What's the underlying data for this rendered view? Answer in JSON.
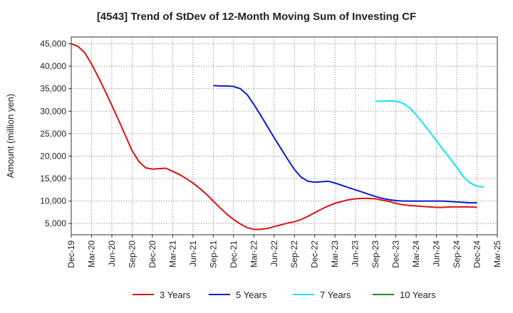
{
  "chart_data": {
    "type": "line",
    "title": "[4543]  Trend of StDev of 12-Month Moving Sum of Investing CF",
    "xlabel": "",
    "ylabel": "Amount (million yen)",
    "ylim": [
      2500,
      46500
    ],
    "yticks": [
      5000,
      10000,
      15000,
      20000,
      25000,
      30000,
      35000,
      40000,
      45000
    ],
    "ytick_labels": [
      "5,000",
      "10,000",
      "15,000",
      "20,000",
      "25,000",
      "30,000",
      "35,000",
      "40,000",
      "45,000"
    ],
    "xlim": [
      "2019-12",
      "2025-03"
    ],
    "xtick_labels": [
      "Dec-19",
      "Mar-20",
      "Jun-20",
      "Sep-20",
      "Dec-20",
      "Mar-21",
      "Jun-21",
      "Sep-21",
      "Dec-21",
      "Mar-22",
      "Jun-22",
      "Sep-22",
      "Dec-22",
      "Mar-23",
      "Jun-23",
      "Sep-23",
      "Dec-23",
      "Mar-24",
      "Jun-24",
      "Sep-24",
      "Dec-24",
      "Mar-25"
    ],
    "grid": true,
    "legend_position": "bottom",
    "series": [
      {
        "name": "3 Years",
        "color": "#dd1111",
        "points": [
          [
            "2019-12",
            45000
          ],
          [
            "2020-01",
            44400
          ],
          [
            "2020-02",
            43000
          ],
          [
            "2020-03",
            40500
          ],
          [
            "2020-04",
            37600
          ],
          [
            "2020-05",
            34500
          ],
          [
            "2020-06",
            31300
          ],
          [
            "2020-07",
            28000
          ],
          [
            "2020-08",
            24600
          ],
          [
            "2020-09",
            21200
          ],
          [
            "2020-10",
            18800
          ],
          [
            "2020-11",
            17400
          ],
          [
            "2020-12",
            17100
          ],
          [
            "2021-01",
            17200
          ],
          [
            "2021-02",
            17300
          ],
          [
            "2021-03",
            16600
          ],
          [
            "2021-04",
            15900
          ],
          [
            "2021-05",
            15000
          ],
          [
            "2021-06",
            14000
          ],
          [
            "2021-07",
            12800
          ],
          [
            "2021-08",
            11500
          ],
          [
            "2021-09",
            10000
          ],
          [
            "2021-10",
            8500
          ],
          [
            "2021-11",
            7100
          ],
          [
            "2021-12",
            5900
          ],
          [
            "2022-01",
            4900
          ],
          [
            "2022-02",
            4100
          ],
          [
            "2022-03",
            3700
          ],
          [
            "2022-04",
            3700
          ],
          [
            "2022-05",
            3900
          ],
          [
            "2022-06",
            4300
          ],
          [
            "2022-07",
            4700
          ],
          [
            "2022-08",
            5100
          ],
          [
            "2022-09",
            5400
          ],
          [
            "2022-10",
            5900
          ],
          [
            "2022-11",
            6600
          ],
          [
            "2022-12",
            7400
          ],
          [
            "2023-01",
            8200
          ],
          [
            "2023-02",
            8900
          ],
          [
            "2023-03",
            9500
          ],
          [
            "2023-04",
            9900
          ],
          [
            "2023-05",
            10300
          ],
          [
            "2023-06",
            10500
          ],
          [
            "2023-07",
            10600
          ],
          [
            "2023-08",
            10600
          ],
          [
            "2023-09",
            10500
          ],
          [
            "2023-10",
            10200
          ],
          [
            "2023-11",
            9900
          ],
          [
            "2023-12",
            9500
          ],
          [
            "2024-01",
            9200
          ],
          [
            "2024-02",
            9000
          ],
          [
            "2024-03",
            8900
          ],
          [
            "2024-04",
            8800
          ],
          [
            "2024-05",
            8700
          ],
          [
            "2024-06",
            8600
          ],
          [
            "2024-07",
            8600
          ],
          [
            "2024-08",
            8700
          ],
          [
            "2024-09",
            8700
          ],
          [
            "2024-10",
            8700
          ],
          [
            "2024-11",
            8700
          ],
          [
            "2024-12",
            8600
          ]
        ]
      },
      {
        "name": "5 Years",
        "color": "#0a1acc",
        "points": [
          [
            "2021-09",
            35700
          ],
          [
            "2021-10",
            35600
          ],
          [
            "2021-11",
            35600
          ],
          [
            "2021-12",
            35500
          ],
          [
            "2022-01",
            35000
          ],
          [
            "2022-02",
            33700
          ],
          [
            "2022-03",
            31500
          ],
          [
            "2022-04",
            29100
          ],
          [
            "2022-05",
            26600
          ],
          [
            "2022-06",
            24100
          ],
          [
            "2022-07",
            21700
          ],
          [
            "2022-08",
            19300
          ],
          [
            "2022-09",
            17000
          ],
          [
            "2022-10",
            15300
          ],
          [
            "2022-11",
            14400
          ],
          [
            "2022-12",
            14200
          ],
          [
            "2023-01",
            14300
          ],
          [
            "2023-02",
            14400
          ],
          [
            "2023-03",
            14000
          ],
          [
            "2023-04",
            13500
          ],
          [
            "2023-05",
            13000
          ],
          [
            "2023-06",
            12500
          ],
          [
            "2023-07",
            12000
          ],
          [
            "2023-08",
            11500
          ],
          [
            "2023-09",
            11000
          ],
          [
            "2023-10",
            10600
          ],
          [
            "2023-11",
            10300
          ],
          [
            "2023-12",
            10100
          ],
          [
            "2024-01",
            10000
          ],
          [
            "2024-02",
            10000
          ],
          [
            "2024-03",
            10000
          ],
          [
            "2024-04",
            10000
          ],
          [
            "2024-05",
            10000
          ],
          [
            "2024-06",
            10000
          ],
          [
            "2024-07",
            10000
          ],
          [
            "2024-08",
            9900
          ],
          [
            "2024-09",
            9800
          ],
          [
            "2024-10",
            9700
          ],
          [
            "2024-11",
            9600
          ],
          [
            "2024-12",
            9600
          ]
        ]
      },
      {
        "name": "7 Years",
        "color": "#11e4ee",
        "points": [
          [
            "2023-09",
            32200
          ],
          [
            "2023-10",
            32200
          ],
          [
            "2023-11",
            32300
          ],
          [
            "2023-12",
            32200
          ],
          [
            "2024-01",
            31800
          ],
          [
            "2024-02",
            30800
          ],
          [
            "2024-03",
            29200
          ],
          [
            "2024-04",
            27300
          ],
          [
            "2024-05",
            25400
          ],
          [
            "2024-06",
            23400
          ],
          [
            "2024-07",
            21400
          ],
          [
            "2024-08",
            19500
          ],
          [
            "2024-09",
            17500
          ],
          [
            "2024-10",
            15400
          ],
          [
            "2024-11",
            14000
          ],
          [
            "2024-12",
            13300
          ],
          [
            "2025-01",
            13100
          ]
        ]
      },
      {
        "name": "10 Years",
        "color": "#1b8a1b",
        "points": []
      }
    ]
  }
}
